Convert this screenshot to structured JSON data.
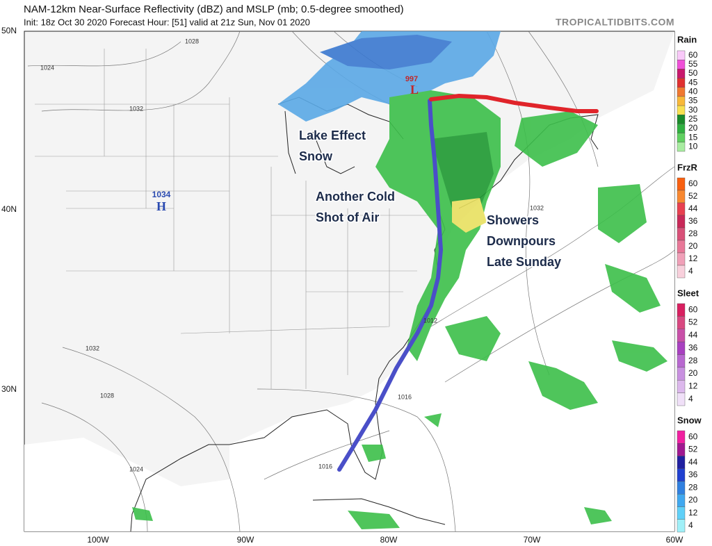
{
  "header": {
    "title": "NAM-12km Near-Surface Reflectivity (dBZ) and MSLP (mb; 0.5-degree smoothed)",
    "subtitle": "Init: 18z Oct 30 2020   Forecast Hour: [51]   valid at 21z Sun, Nov 01 2020",
    "credit": "TROPICALTIDBITS.COM"
  },
  "map": {
    "lat_labels": [
      "50N",
      "40N",
      "30N"
    ],
    "lon_labels": [
      "100W",
      "90W",
      "80W",
      "70W",
      "60W"
    ],
    "pressure_centers": [
      {
        "value": "1034",
        "symbol": "H"
      },
      {
        "value": "997",
        "symbol": "L"
      }
    ],
    "isobar_labels": [
      "1028",
      "1024",
      "1032",
      "1032",
      "1028",
      "1024",
      "1016",
      "1016",
      "1012",
      "1032"
    ],
    "annotations": [
      {
        "lines": [
          "Lake Effect",
          "Snow"
        ]
      },
      {
        "lines": [
          "Another Cold",
          "Shot of Air"
        ]
      },
      {
        "lines": [
          "Showers",
          "Downpours",
          "Late Sunday"
        ]
      }
    ]
  },
  "legend": [
    {
      "title": "Rain",
      "labels": [
        60,
        55,
        50,
        45,
        40,
        35,
        30,
        25,
        20,
        15,
        10
      ],
      "colors": [
        "#f9c9f9",
        "#f050d8",
        "#c8186c",
        "#e03030",
        "#f07830",
        "#f8b838",
        "#f8e050",
        "#1a8a2a",
        "#30b040",
        "#60d060",
        "#a8eca0"
      ]
    },
    {
      "title": "FrzR",
      "labels": [
        60,
        52,
        44,
        36,
        28,
        20,
        12,
        4
      ],
      "colors": [
        "#f86010",
        "#f88830",
        "#e84050",
        "#c82858",
        "#d85078",
        "#e87898",
        "#f0a0b8",
        "#f8d0dc"
      ]
    },
    {
      "title": "Sleet",
      "labels": [
        60,
        52,
        44,
        36,
        28,
        20,
        12,
        4
      ],
      "colors": [
        "#d82060",
        "#d84880",
        "#c850a8",
        "#a840c0",
        "#b868d0",
        "#c890e0",
        "#dcb8ec",
        "#f0e0f8"
      ]
    },
    {
      "title": "Snow",
      "labels": [
        60,
        52,
        44,
        36,
        28,
        20,
        12,
        4
      ],
      "colors": [
        "#f020a0",
        "#a01890",
        "#2020a0",
        "#2040d0",
        "#3080e0",
        "#40a8f0",
        "#60d0f8",
        "#a0f0f8"
      ]
    }
  ]
}
